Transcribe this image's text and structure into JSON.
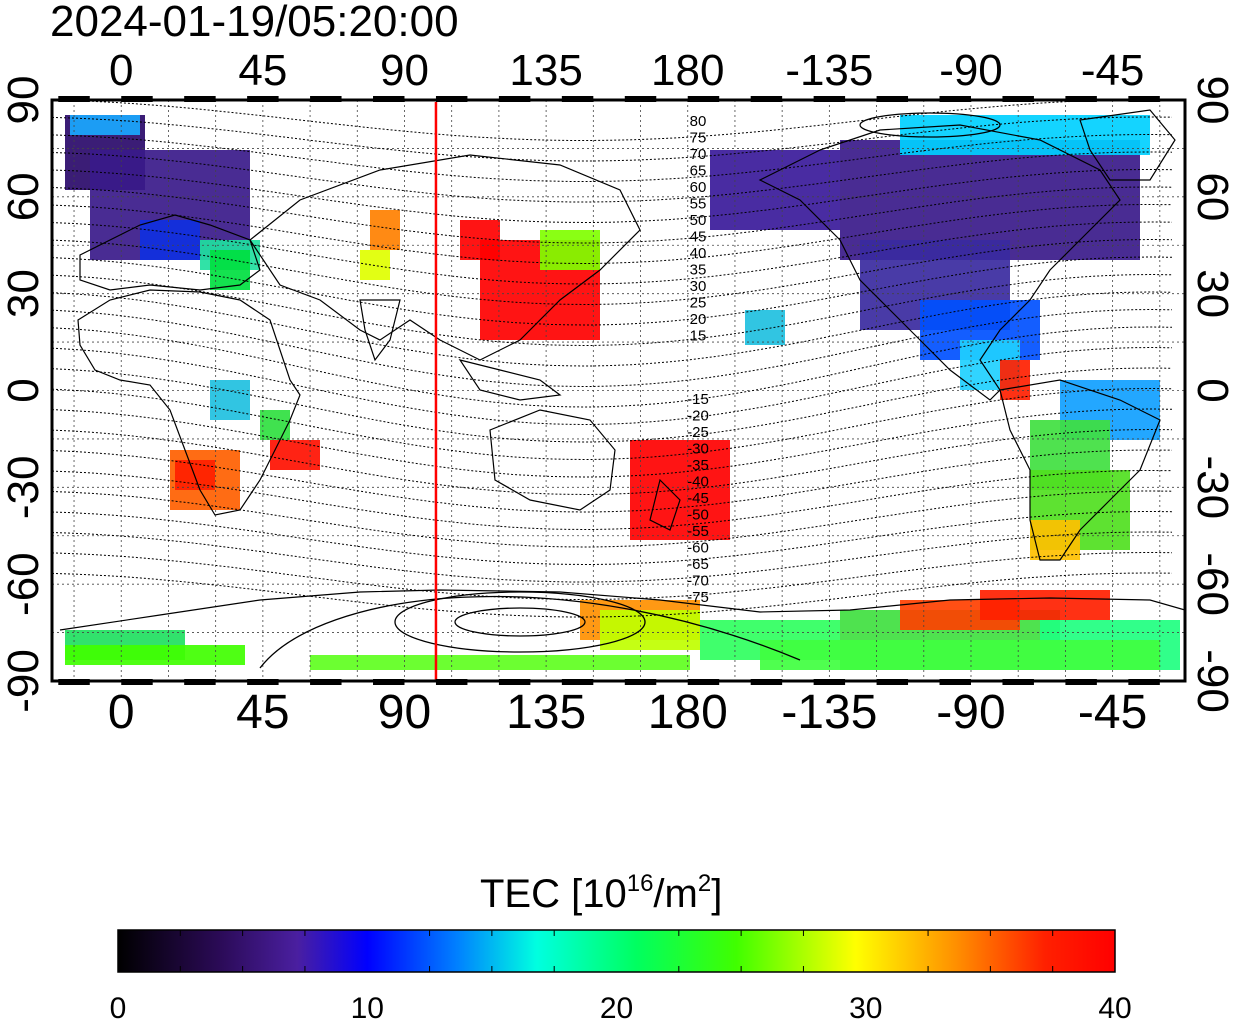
{
  "timestamp": "2024-01-19/05:20:00",
  "top_axis_ticks": [
    "0",
    "45",
    "90",
    "135",
    "180",
    "-135",
    "-90",
    "-45"
  ],
  "bottom_axis_ticks": [
    "0",
    "45",
    "90",
    "135",
    "180",
    "-135",
    "-90",
    "-45"
  ],
  "left_axis_ticks": [
    "90",
    "60",
    "30",
    "0",
    "-30",
    "-60",
    "-90"
  ],
  "right_axis_ticks": [
    "90",
    "60",
    "30",
    "0",
    "-30",
    "-60",
    "-90"
  ],
  "contour_labels_north": [
    "80",
    "75",
    "70",
    "65",
    "60",
    "55",
    "50",
    "45",
    "40",
    "35",
    "30",
    "25",
    "20",
    "15"
  ],
  "contour_labels_south": [
    "-15",
    "-20",
    "-25",
    "-30",
    "-35",
    "-40",
    "-45",
    "-50",
    "-55",
    "-60",
    "-65",
    "-70",
    "-75"
  ],
  "colorbar": {
    "title_prefix": "TEC  [10",
    "title_exp": "16",
    "title_mid": "/m",
    "title_exp2": "2",
    "title_suffix": "]",
    "tick_labels": [
      "0",
      "10",
      "20",
      "30",
      "40"
    ],
    "min": 0,
    "max": 40
  },
  "marker_longitude": 100,
  "colors": {
    "marker_line": "#ff0000",
    "colormap": [
      "#000000",
      "#3a0a6a",
      "#5b2fb0",
      "#0010ff",
      "#00a0ff",
      "#00ffd0",
      "#00ff40",
      "#80ff00",
      "#ffff00",
      "#ffa000",
      "#ff3000",
      "#ff0000"
    ]
  }
}
